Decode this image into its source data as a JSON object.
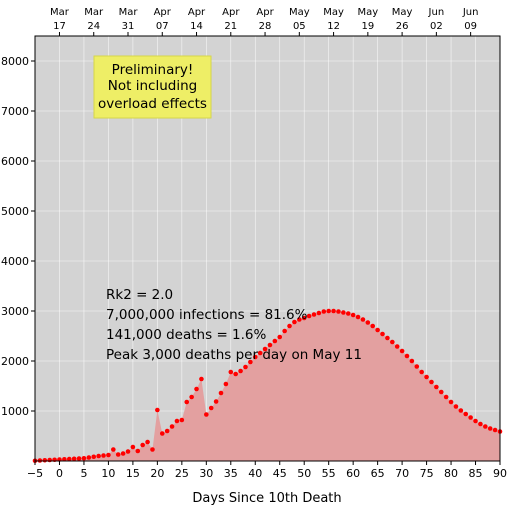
{
  "chart_data": {
    "type": "area",
    "xlabel": "Days Since 10th Death",
    "ylabel": "",
    "xlim": [
      -5,
      90
    ],
    "ylim": [
      0,
      8500
    ],
    "x_ticks": [
      -5,
      0,
      5,
      10,
      15,
      20,
      25,
      30,
      35,
      40,
      45,
      50,
      55,
      60,
      65,
      70,
      75,
      80,
      85,
      90
    ],
    "y_ticks": [
      1000,
      2000,
      3000,
      4000,
      5000,
      6000,
      7000,
      8000
    ],
    "top_axis_ticks": [
      {
        "x": 0,
        "month": "Mar",
        "day": "17"
      },
      {
        "x": 7,
        "month": "Mar",
        "day": "24"
      },
      {
        "x": 14,
        "month": "Mar",
        "day": "31"
      },
      {
        "x": 21,
        "month": "Apr",
        "day": "07"
      },
      {
        "x": 28,
        "month": "Apr",
        "day": "14"
      },
      {
        "x": 35,
        "month": "Apr",
        "day": "21"
      },
      {
        "x": 42,
        "month": "Apr",
        "day": "28"
      },
      {
        "x": 49,
        "month": "May",
        "day": "05"
      },
      {
        "x": 56,
        "month": "May",
        "day": "12"
      },
      {
        "x": 63,
        "month": "May",
        "day": "19"
      },
      {
        "x": 70,
        "month": "May",
        "day": "26"
      },
      {
        "x": 77,
        "month": "Jun",
        "day": "02"
      },
      {
        "x": 84,
        "month": "Jun",
        "day": "09"
      }
    ],
    "grid": true,
    "colors": {
      "background": "#d3d3d3",
      "fill": "#e3a0a0",
      "points": "#ff0000",
      "grid": "#ffffff",
      "note_box": "#eeee66"
    },
    "note": [
      "Preliminary!",
      "Not including",
      "overload effects"
    ],
    "annotations": [
      "Rk2 = 2.0",
      "7,000,000 infections = 81.6%",
      "141,000 deaths = 1.6%",
      "Peak 3,000 deaths per day on May 11"
    ],
    "series": [
      {
        "x": [
          -5,
          -4,
          -3,
          -2,
          -1,
          0,
          1,
          2,
          3,
          4,
          5,
          6,
          7,
          8,
          9,
          10,
          11,
          12,
          13,
          14,
          15,
          16,
          17,
          18,
          19,
          20,
          21,
          22,
          23,
          24,
          25,
          26,
          27,
          28,
          29,
          30,
          31,
          32,
          33,
          34,
          35,
          36,
          37,
          38,
          39,
          40,
          41,
          42,
          43,
          44,
          45,
          46,
          47,
          48,
          49,
          50,
          51,
          52,
          53,
          54,
          55,
          56,
          57,
          58,
          59,
          60,
          61,
          62,
          63,
          64,
          65,
          66,
          67,
          68,
          69,
          70,
          71,
          72,
          73,
          74,
          75,
          76,
          77,
          78,
          79,
          80,
          81,
          82,
          83,
          84,
          85,
          86,
          87,
          88,
          89,
          90
        ],
        "values": [
          5,
          10,
          15,
          20,
          25,
          30,
          35,
          40,
          45,
          50,
          55,
          70,
          85,
          100,
          110,
          120,
          230,
          130,
          150,
          190,
          280,
          200,
          320,
          380,
          230,
          1020,
          550,
          600,
          690,
          800,
          820,
          1180,
          1280,
          1440,
          1640,
          930,
          1060,
          1190,
          1360,
          1540,
          1780,
          1740,
          1800,
          1880,
          1980,
          2080,
          2160,
          2240,
          2320,
          2400,
          2480,
          2600,
          2700,
          2780,
          2830,
          2860,
          2900,
          2930,
          2960,
          2990,
          3000,
          3000,
          2990,
          2970,
          2950,
          2920,
          2880,
          2830,
          2770,
          2700,
          2620,
          2540,
          2460,
          2380,
          2290,
          2200,
          2100,
          2000,
          1890,
          1780,
          1680,
          1580,
          1480,
          1380,
          1280,
          1180,
          1090,
          1010,
          940,
          870,
          800,
          740,
          690,
          650,
          620,
          590
        ]
      }
    ]
  }
}
